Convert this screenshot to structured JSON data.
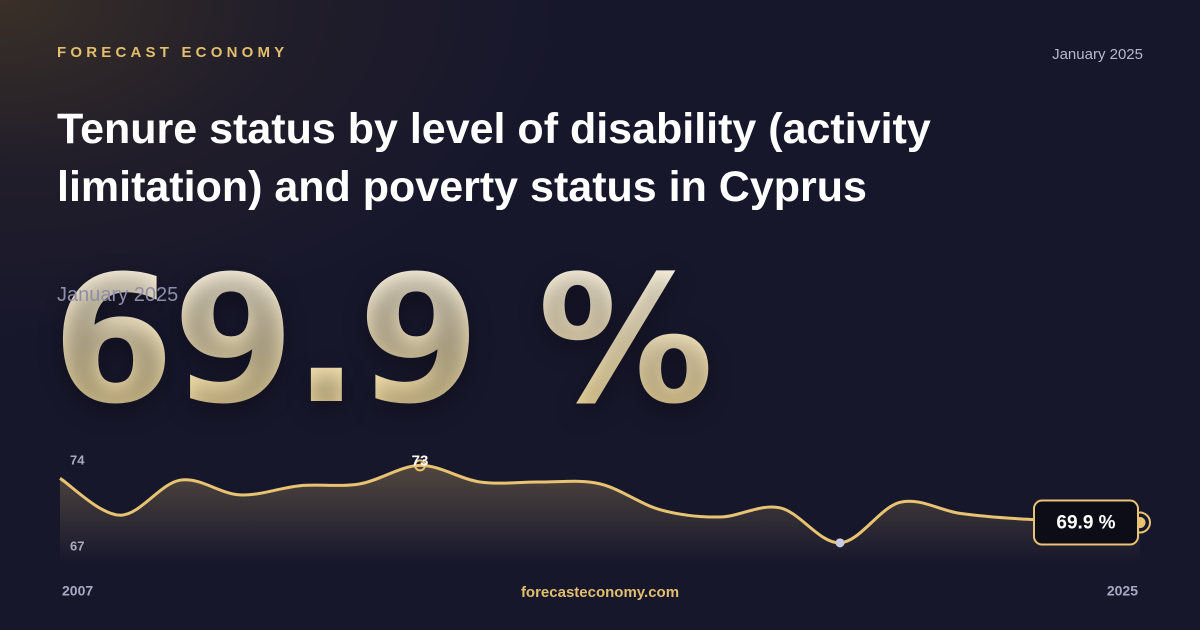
{
  "header": {
    "brand": "FORECAST ECONOMY",
    "date": "January 2025",
    "title": "Tenure status by level of disability (activity limitation) and poverty status in Cyprus"
  },
  "headline": {
    "value": "69.9 %",
    "date": "January 2025"
  },
  "footer": {
    "site": "forecasteconomy.com"
  },
  "chart_data": {
    "type": "line",
    "categories": [
      "2007",
      null,
      null,
      null,
      null,
      null,
      null,
      null,
      null,
      null,
      null,
      null,
      null,
      null,
      null,
      null,
      null,
      null,
      "2025"
    ],
    "series": [
      {
        "color": "#e8c372",
        "values": [
          72.3,
          70.3,
          72.2,
          71.4,
          71.9,
          72.0,
          73,
          72.1,
          72.1,
          72.0,
          70.6,
          70.2,
          70.7,
          68.8,
          71.0,
          70.4,
          70.1,
          70.0,
          69.9
        ],
        "value_labels": [
          null,
          null,
          null,
          null,
          null,
          null,
          "73",
          null,
          null,
          null,
          null,
          null,
          null,
          null,
          null,
          null,
          null,
          null,
          "69.9 %"
        ]
      }
    ],
    "ylim": [
      67,
      74
    ],
    "yticks": [
      67,
      74
    ]
  }
}
